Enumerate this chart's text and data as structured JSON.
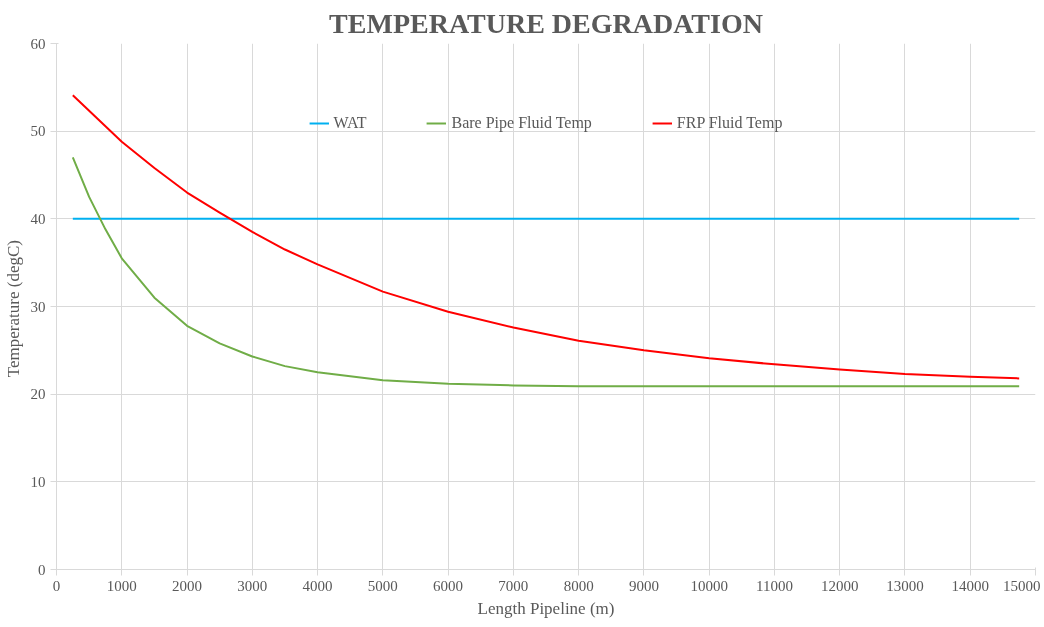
{
  "chart_data": {
    "type": "line",
    "title": "TEMPERATURE DEGRADATION",
    "xlabel": "Length Pipeline (m)",
    "ylabel": "Temperature  (degC)",
    "xlim": [
      0,
      15000
    ],
    "xticks": [
      0,
      1000,
      2000,
      3000,
      4000,
      5000,
      6000,
      7000,
      8000,
      9000,
      10000,
      11000,
      12000,
      13000,
      14000,
      15000
    ],
    "ylim": [
      0,
      60
    ],
    "yticks": [
      0,
      10,
      20,
      30,
      40,
      50,
      60
    ],
    "grid": true,
    "legend": "top",
    "marker": "none",
    "line_style": "solid",
    "series": [
      {
        "name": "WAT",
        "color": "#00b0f0",
        "x": [
          250,
          14750
        ],
        "values": [
          40,
          40
        ]
      },
      {
        "name": "Bare Pipe Fluid Temp",
        "color": "#70ad47",
        "x": [
          250,
          500,
          750,
          1000,
          1500,
          2000,
          2500,
          3000,
          3500,
          4000,
          5000,
          6000,
          7000,
          8000,
          10000,
          12000,
          14750
        ],
        "values": [
          47.0,
          42.5,
          38.8,
          35.5,
          31.0,
          27.8,
          25.8,
          24.3,
          23.2,
          22.5,
          21.6,
          21.2,
          21.0,
          20.9,
          20.9,
          20.9,
          20.9
        ]
      },
      {
        "name": "FRP Fluid Temp",
        "color": "#ff0000",
        "x": [
          250,
          1000,
          1500,
          2000,
          2500,
          3000,
          3500,
          4000,
          5000,
          6000,
          7000,
          8000,
          9000,
          10000,
          11000,
          12000,
          13000,
          14000,
          14750
        ],
        "values": [
          54.1,
          48.8,
          45.8,
          43.0,
          40.7,
          38.5,
          36.5,
          34.8,
          31.7,
          29.4,
          27.6,
          26.1,
          25.0,
          24.1,
          23.4,
          22.8,
          22.3,
          22.0,
          21.8
        ]
      }
    ]
  }
}
